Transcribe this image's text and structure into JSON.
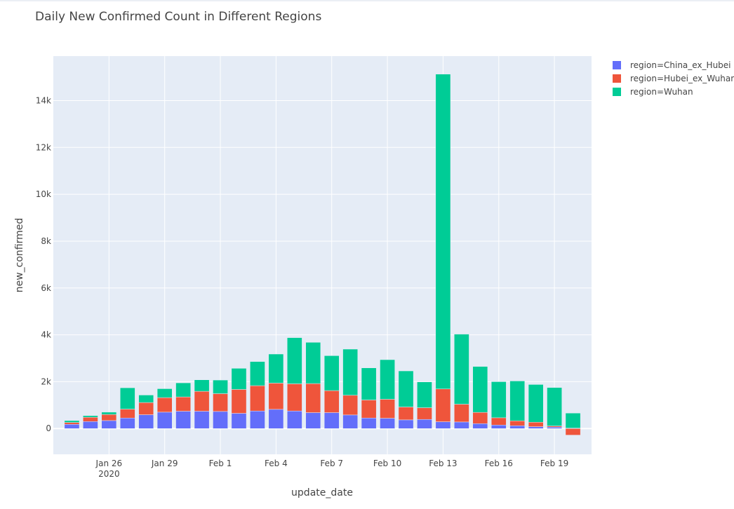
{
  "chart_data": {
    "type": "bar",
    "barmode": "relative",
    "title": "Daily New Confirmed Count in Different Regions",
    "xlabel": "update_date",
    "ylabel": "new_confirmed",
    "x": [
      "2020-01-24",
      "2020-01-25",
      "2020-01-26",
      "2020-01-27",
      "2020-01-28",
      "2020-01-29",
      "2020-01-30",
      "2020-01-31",
      "2020-02-01",
      "2020-02-02",
      "2020-02-03",
      "2020-02-04",
      "2020-02-05",
      "2020-02-06",
      "2020-02-07",
      "2020-02-08",
      "2020-02-09",
      "2020-02-10",
      "2020-02-11",
      "2020-02-12",
      "2020-02-13",
      "2020-02-14",
      "2020-02-15",
      "2020-02-16",
      "2020-02-17",
      "2020-02-18",
      "2020-02-19",
      "2020-02-20"
    ],
    "series": [
      {
        "name": "region=China_ex_Hubei",
        "color": "#636efa",
        "values": [
          180,
          300,
          340,
          450,
          590,
          700,
          740,
          740,
          730,
          650,
          750,
          820,
          750,
          680,
          680,
          580,
          450,
          440,
          370,
          390,
          290,
          280,
          210,
          150,
          120,
          80,
          60,
          20
        ]
      },
      {
        "name": "region=Hubei_ex_Wuhan",
        "color": "#ef553b",
        "values": [
          80,
          180,
          260,
          380,
          520,
          620,
          610,
          850,
          760,
          1020,
          1080,
          1120,
          1160,
          1240,
          940,
          840,
          770,
          810,
          550,
          500,
          1400,
          760,
          480,
          310,
          210,
          190,
          50,
          -280
        ]
      },
      {
        "name": "region=Wuhan",
        "color": "#00cc96",
        "values": [
          80,
          70,
          100,
          910,
          320,
          380,
          600,
          490,
          580,
          900,
          1030,
          1240,
          1970,
          1760,
          1490,
          1970,
          1370,
          1690,
          1540,
          1100,
          13440,
          2990,
          1960,
          1540,
          1700,
          1610,
          1640,
          640
        ]
      }
    ],
    "xticks": [
      {
        "date": "2020-01-26",
        "label": "Jan 26",
        "sublabel": "2020"
      },
      {
        "date": "2020-01-29",
        "label": "Jan 29"
      },
      {
        "date": "2020-02-01",
        "label": "Feb 1"
      },
      {
        "date": "2020-02-04",
        "label": "Feb 4"
      },
      {
        "date": "2020-02-07",
        "label": "Feb 7"
      },
      {
        "date": "2020-02-10",
        "label": "Feb 10"
      },
      {
        "date": "2020-02-13",
        "label": "Feb 13"
      },
      {
        "date": "2020-02-16",
        "label": "Feb 16"
      },
      {
        "date": "2020-02-19",
        "label": "Feb 19"
      }
    ],
    "yticks": [
      {
        "value": 0,
        "label": "0"
      },
      {
        "value": 2000,
        "label": "2k"
      },
      {
        "value": 4000,
        "label": "4k"
      },
      {
        "value": 6000,
        "label": "6k"
      },
      {
        "value": 8000,
        "label": "8k"
      },
      {
        "value": 10000,
        "label": "10k"
      },
      {
        "value": 12000,
        "label": "12k"
      },
      {
        "value": 14000,
        "label": "14k"
      }
    ],
    "ylim": [
      -1100,
      15900
    ],
    "xlim": [
      "2020-01-23",
      "2020-02-21"
    ],
    "grid": true,
    "legend_position": "top-right",
    "plot_background": "#e5ecf6"
  }
}
